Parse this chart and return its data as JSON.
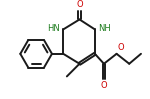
{
  "bg_color": "#ffffff",
  "line_color": "#1a1a1a",
  "atom_color": "#1a7a1a",
  "oxygen_color": "#cc0000",
  "bond_width": 1.4,
  "fig_width": 1.5,
  "fig_height": 0.99,
  "dpi": 100,
  "xlim": [
    0.0,
    1.5
  ],
  "ylim": [
    0.05,
    1.05
  ]
}
